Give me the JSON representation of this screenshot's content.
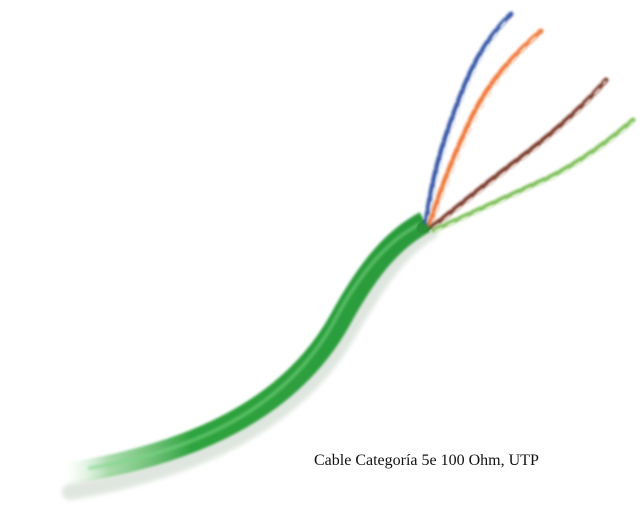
{
  "photo": {
    "subject_icon": "cable-icon",
    "jacket_color": "#2fa33f",
    "pair_colors": [
      "#3b5aa8",
      "#f07a3e",
      "#7a3a2a",
      "#7fbf5a"
    ]
  },
  "caption": {
    "text": "Cable Categoría 5e 100 Ohm, UTP"
  }
}
